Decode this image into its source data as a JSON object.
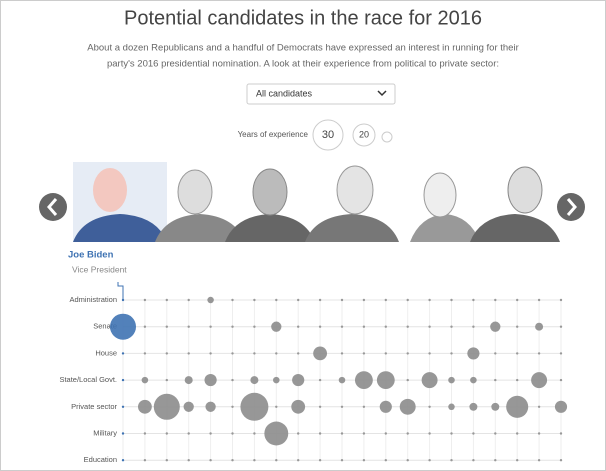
{
  "header": {
    "title": "Potential candidates in the race for 2016",
    "subtitle": [
      "About a dozen Republicans and a handful of Democrats have expressed an interest in running for their",
      "party's 2016 presidential nomination. A look at their experience from political to private sector:"
    ]
  },
  "controls": {
    "dropdown": "All candidates",
    "size_legend": {
      "title": "Years of experience",
      "values": [
        30,
        20
      ]
    }
  },
  "candidate": {
    "name": "Joe Biden",
    "role": "Vice President"
  },
  "chart_data": {
    "type": "bubble",
    "categories": [
      null,
      null,
      null,
      null,
      null,
      null,
      null,
      null,
      null,
      null,
      null,
      null,
      null,
      null,
      null,
      null,
      null,
      null,
      null,
      null,
      null
    ],
    "color": "#8c8c8c",
    "highlight_color": "#3f73b3",
    "series": [
      {
        "name": "Administration",
        "values": [
          null,
          null,
          null,
          null,
          2,
          null,
          null,
          null,
          null,
          null,
          null,
          null,
          null,
          null,
          null,
          null,
          null,
          null,
          null,
          null,
          null
        ]
      },
      {
        "name": "Senate",
        "values": [
          32,
          null,
          null,
          null,
          null,
          null,
          null,
          5,
          null,
          null,
          null,
          null,
          null,
          null,
          null,
          null,
          null,
          5,
          null,
          3,
          null
        ]
      },
      {
        "name": "House",
        "values": [
          null,
          null,
          null,
          null,
          null,
          null,
          null,
          null,
          null,
          9,
          null,
          null,
          null,
          null,
          null,
          null,
          7,
          null,
          null,
          null,
          null
        ]
      },
      {
        "name": "State/Local Govt.",
        "values": [
          null,
          2,
          null,
          3,
          7,
          null,
          3,
          2,
          7,
          null,
          2,
          15,
          15,
          null,
          12,
          2,
          2,
          null,
          null,
          12,
          null
        ]
      },
      {
        "name": "Private sector",
        "values": [
          null,
          9,
          32,
          5,
          5,
          null,
          37,
          null,
          9,
          null,
          null,
          null,
          7,
          12,
          null,
          2,
          3,
          3,
          23,
          null,
          7
        ]
      },
      {
        "name": "Military",
        "values": [
          null,
          null,
          null,
          null,
          null,
          null,
          null,
          27,
          null,
          null,
          null,
          null,
          null,
          null,
          null,
          null,
          null,
          null,
          null,
          null,
          null
        ]
      },
      {
        "name": "Education",
        "values": [
          null,
          null,
          null,
          null,
          null,
          null,
          null,
          null,
          null,
          null,
          null,
          null,
          null,
          null,
          null,
          null,
          null,
          null,
          null,
          null,
          null
        ]
      }
    ]
  }
}
